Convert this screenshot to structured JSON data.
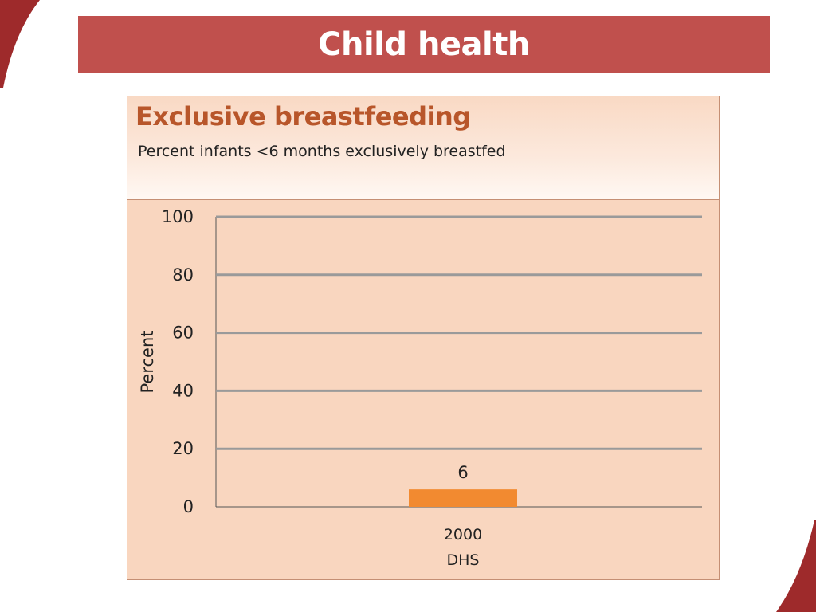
{
  "slide": {
    "title": "Child health",
    "accent_color": "#c0504d",
    "corner_color": "#9e2a2b"
  },
  "chart_data": {
    "type": "bar",
    "title": "Exclusive breastfeeding",
    "subtitle": "Percent infants <6 months exclusively breastfed",
    "ylabel": "Percent",
    "xlabel": "",
    "ylim": [
      0,
      100
    ],
    "yticks": [
      0,
      20,
      40,
      60,
      80,
      100
    ],
    "grid": true,
    "categories": [
      {
        "line1": "2000",
        "line2": "DHS"
      }
    ],
    "values": [
      6
    ],
    "data_labels": [
      "6"
    ],
    "bar_color": "#f28a30",
    "title_color": "#b8562a",
    "panel_color": "#f9d6bf",
    "grid_color": "#9a9a9a"
  }
}
